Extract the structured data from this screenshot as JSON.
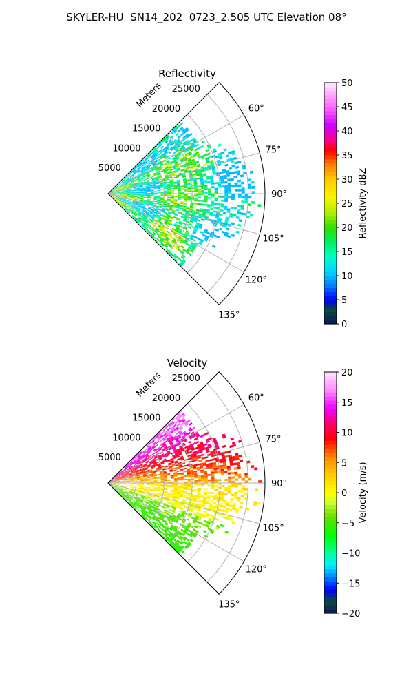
{
  "title": "SKYLER-HU  SN14_202  0723_2.505 UTC Elevation 08°",
  "chart_data": [
    {
      "type": "polar-sector",
      "title": "Reflectivity",
      "radial_label": "Meters",
      "theta_range_deg": [
        45,
        135
      ],
      "r_max": 28000,
      "radial_ticks": [
        5000,
        10000,
        15000,
        20000,
        25000
      ],
      "radial_tick_labels": [
        "5000",
        "10000",
        "15000",
        "20000",
        "25000"
      ],
      "angle_ticks": [
        60,
        75,
        90,
        105,
        120,
        135
      ],
      "angle_tick_labels": [
        "60°",
        "75°",
        "90°",
        "105°",
        "120°",
        "135°"
      ],
      "grid": true,
      "colorbar": {
        "label": "Reflectivity dBZ",
        "min": 0,
        "max": 50,
        "ticks": [
          0,
          5,
          10,
          15,
          20,
          25,
          30,
          35,
          40,
          45,
          50
        ],
        "tick_labels": [
          "0",
          "5",
          "10",
          "15",
          "20",
          "25",
          "30",
          "35",
          "40",
          "45",
          "50"
        ]
      },
      "colormap": [
        {
          "v": 0,
          "c": "#0b1a55"
        },
        {
          "v": 3,
          "c": "#0b4a3a"
        },
        {
          "v": 5,
          "c": "#0000ff"
        },
        {
          "v": 8,
          "c": "#0080ff"
        },
        {
          "v": 11,
          "c": "#00d8ff"
        },
        {
          "v": 14,
          "c": "#00ffc0"
        },
        {
          "v": 17,
          "c": "#00f060"
        },
        {
          "v": 20,
          "c": "#33dd00"
        },
        {
          "v": 23,
          "c": "#aaee00"
        },
        {
          "v": 26,
          "c": "#f5f500"
        },
        {
          "v": 30,
          "c": "#ffcc00"
        },
        {
          "v": 33,
          "c": "#ff8000"
        },
        {
          "v": 36,
          "c": "#ff0000"
        },
        {
          "v": 38,
          "c": "#ff0080"
        },
        {
          "v": 41,
          "c": "#cc00ff"
        },
        {
          "v": 45,
          "c": "#ff66ff"
        },
        {
          "v": 50,
          "c": "#ffe6ff"
        }
      ]
    },
    {
      "type": "polar-sector",
      "title": "Velocity",
      "radial_label": "Meters",
      "theta_range_deg": [
        45,
        135
      ],
      "r_max": 28000,
      "radial_ticks": [
        5000,
        10000,
        15000,
        20000,
        25000
      ],
      "radial_tick_labels": [
        "5000",
        "10000",
        "15000",
        "20000",
        "25000"
      ],
      "angle_ticks": [
        60,
        75,
        90,
        105,
        120,
        135
      ],
      "angle_tick_labels": [
        "60°",
        "75°",
        "90°",
        "105°",
        "120°",
        "135°"
      ],
      "grid": true,
      "colorbar": {
        "label": "Velocity (m/s)",
        "min": -20,
        "max": 20,
        "ticks": [
          -20,
          -15,
          -10,
          -5,
          0,
          5,
          10,
          15,
          20
        ],
        "tick_labels": [
          "−20",
          "−15",
          "−10",
          "−5",
          "0",
          "5",
          "10",
          "15",
          "20"
        ]
      },
      "colormap": [
        {
          "v": -20,
          "c": "#0b1a55"
        },
        {
          "v": -18,
          "c": "#0b4a3a"
        },
        {
          "v": -16,
          "c": "#0000ff"
        },
        {
          "v": -14,
          "c": "#0080ff"
        },
        {
          "v": -12,
          "c": "#00f0ff"
        },
        {
          "v": -10,
          "c": "#00ffa0"
        },
        {
          "v": -7,
          "c": "#00ff00"
        },
        {
          "v": -4,
          "c": "#66dd00"
        },
        {
          "v": -1.5,
          "c": "#ccff33"
        },
        {
          "v": 0,
          "c": "#ffff00"
        },
        {
          "v": 3,
          "c": "#ffcc00"
        },
        {
          "v": 6,
          "c": "#ff8800"
        },
        {
          "v": 9,
          "c": "#ff0000"
        },
        {
          "v": 12,
          "c": "#ff0080"
        },
        {
          "v": 14,
          "c": "#ee00ff"
        },
        {
          "v": 17,
          "c": "#ff88ff"
        },
        {
          "v": 20,
          "c": "#ffe6ff"
        }
      ]
    }
  ]
}
